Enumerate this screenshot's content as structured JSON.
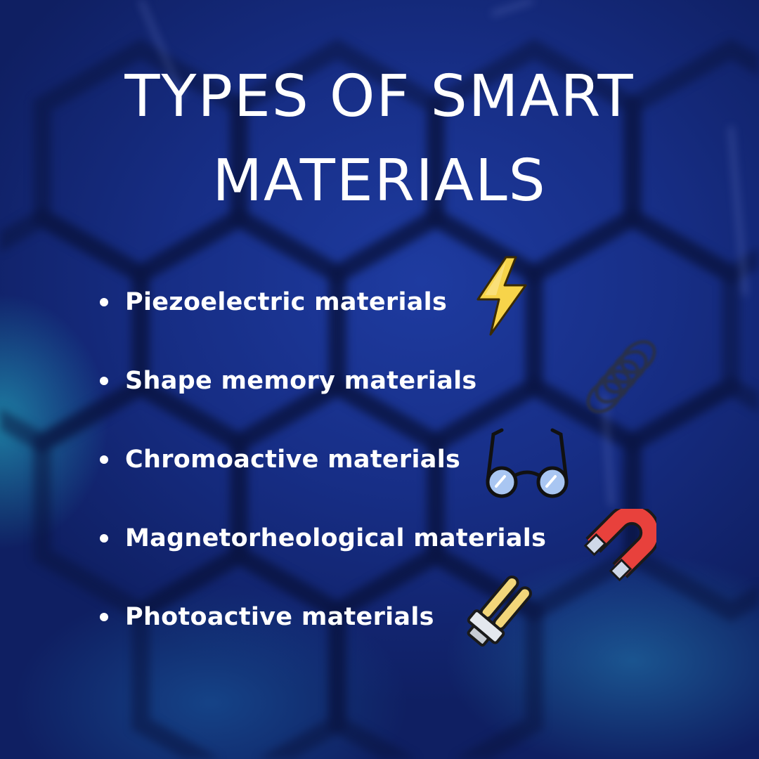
{
  "title": {
    "line1": "TYPES OF SMART",
    "line2": "MATERIALS"
  },
  "items": [
    {
      "label": "Piezoelectric materials",
      "icon": "lightning-bolt-icon"
    },
    {
      "label": "Shape memory materials",
      "icon": "spring-coil-icon"
    },
    {
      "label": "Chromoactive materials",
      "icon": "glasses-icon"
    },
    {
      "label": "Magnetorheological materials",
      "icon": "horseshoe-magnet-icon"
    },
    {
      "label": "Photoactive materials",
      "icon": "fluorescent-lamp-icon"
    }
  ],
  "colors": {
    "background": "#172e86",
    "text": "#ffffff",
    "bolt": "#f7d44a",
    "magnet": "#e8413c",
    "lamp": "#f2d67a"
  }
}
